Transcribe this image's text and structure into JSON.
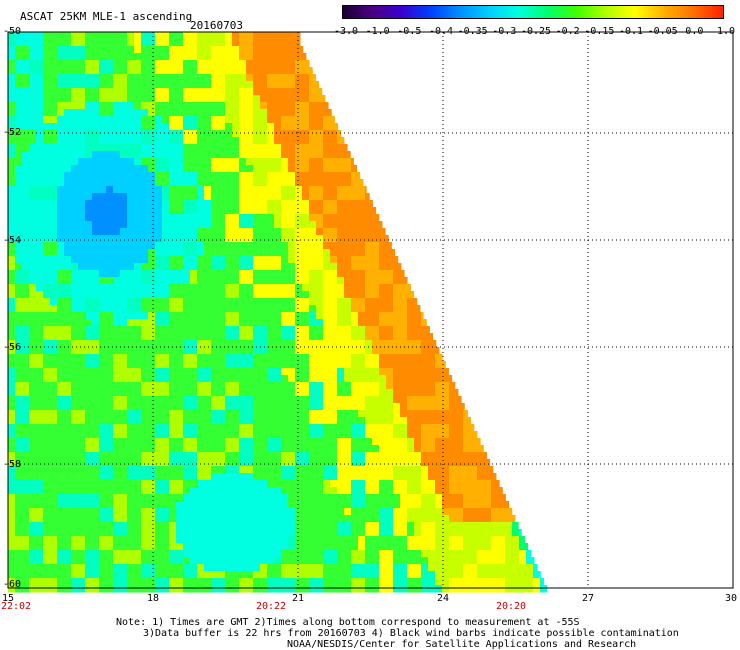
{
  "header": {
    "title": "ASCAT 25KM MLE-1 ascending",
    "date": "20160703"
  },
  "colorbar": {
    "labels": [
      "-3.0",
      "-1.0",
      "-0.5",
      "-0.4",
      "-0.35",
      "-0.3",
      "-0.25",
      "-0.2",
      "-0.15",
      "-0.1",
      "-0.05",
      "0.0",
      "1.0"
    ],
    "colors": [
      "#1a0033",
      "#4b0082",
      "#3a00d0",
      "#0040ff",
      "#0090ff",
      "#00d0ff",
      "#00ffe0",
      "#00ff70",
      "#40ff00",
      "#b0ff00",
      "#ffff00",
      "#ffb000",
      "#ff7000",
      "#ff2000"
    ]
  },
  "axes": {
    "y_ticks": [
      "-50",
      "-52",
      "-54",
      "-56",
      "-58",
      "-60"
    ],
    "x_ticks": [
      "15",
      "18",
      "21",
      "24",
      "27",
      "30"
    ],
    "time_labels": [
      "22:02",
      "20:22",
      "20:20"
    ]
  },
  "notes": {
    "line1": "Note: 1) Times are GMT 2)Times along bottom correspond to measurement at -55S",
    "line2": "3)Data buffer is 22 hrs from 20160703 4) Black wind barbs indicate possible contamination",
    "line3": "NOAA/NESDIS/Center for Satellite Applications and Research"
  }
}
